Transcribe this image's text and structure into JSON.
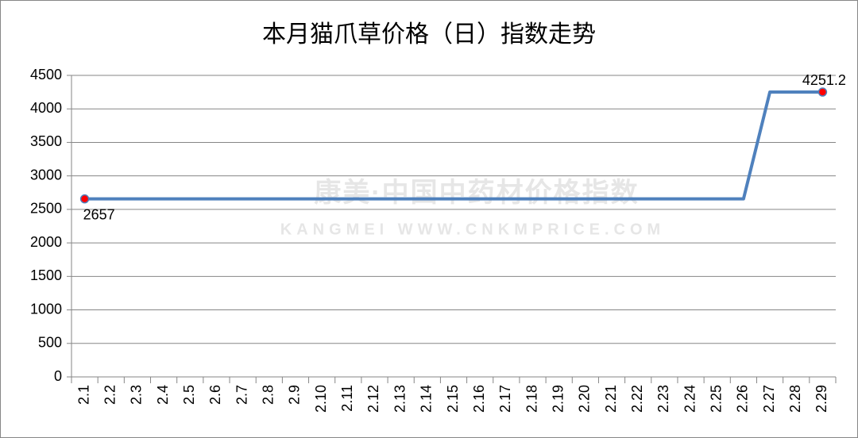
{
  "chart_data": {
    "type": "line",
    "title": "本月猫爪草价格（日）指数走势",
    "categories": [
      "2.1",
      "2.2",
      "2.3",
      "2.4",
      "2.5",
      "2.6",
      "2.7",
      "2.8",
      "2.9",
      "2.10",
      "2.11",
      "2.12",
      "2.13",
      "2.14",
      "2.15",
      "2.16",
      "2.17",
      "2.18",
      "2.19",
      "2.20",
      "2.21",
      "2.22",
      "2.23",
      "2.24",
      "2.25",
      "2.26",
      "2.27",
      "2.28",
      "2.29"
    ],
    "series": [
      {
        "color": "#4f81bd",
        "values": [
          2657,
          2657,
          2657,
          2657,
          2657,
          2657,
          2657,
          2657,
          2657,
          2657,
          2657,
          2657,
          2657,
          2657,
          2657,
          2657,
          2657,
          2657,
          2657,
          2657,
          2657,
          2657,
          2657,
          2657,
          2657,
          2657,
          4251.2,
          4251.2,
          4251.2
        ]
      }
    ],
    "ylim": [
      0,
      4500
    ],
    "yticks": [
      0,
      500,
      1000,
      1500,
      2000,
      2500,
      3000,
      3500,
      4000,
      4500
    ],
    "grid": true,
    "markers": "ends",
    "marker_color": "#ff0000",
    "data_labels": "ends",
    "watermark": {
      "text": "康美·中国中药材价格指数",
      "subtext": "KANGMEI WWW.CNKMPRICE.COM"
    }
  }
}
